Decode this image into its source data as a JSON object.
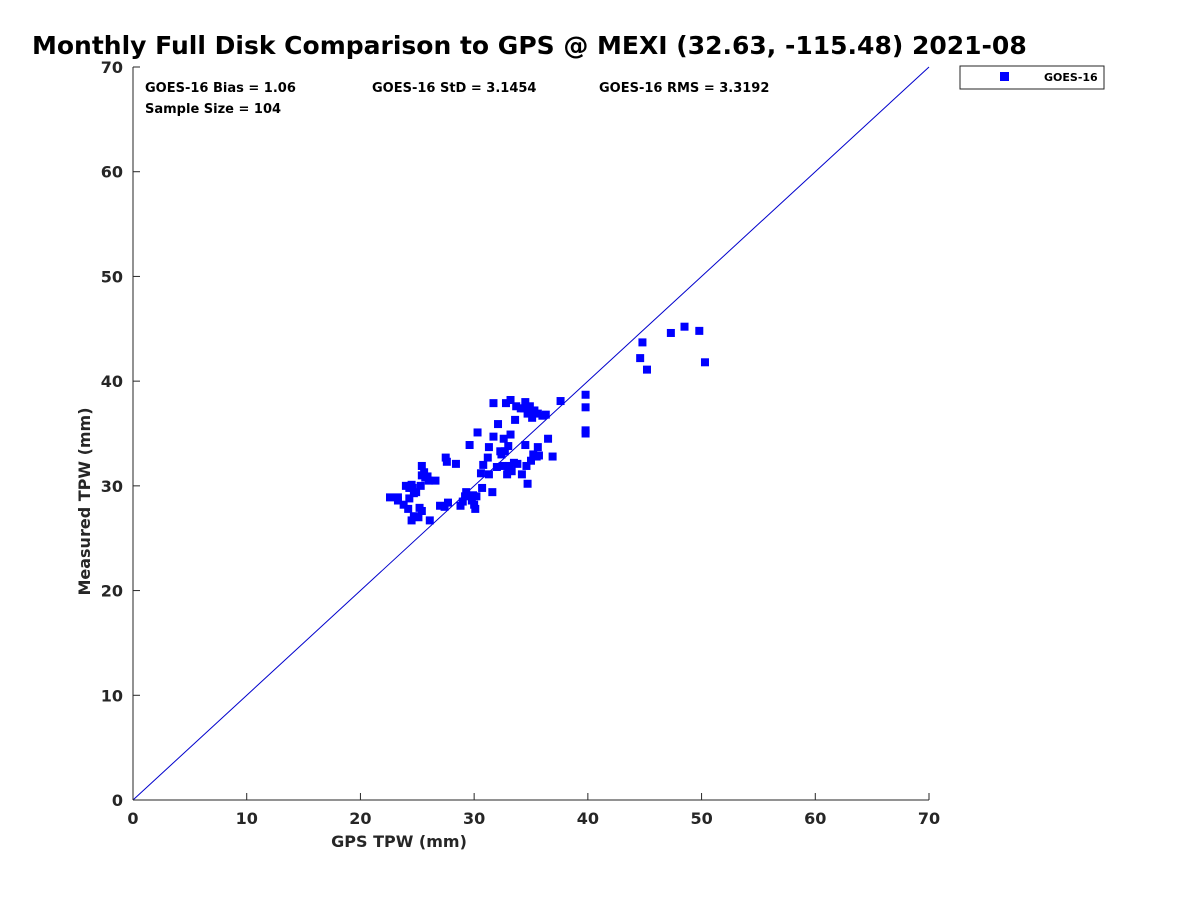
{
  "colors": {
    "series": "#0000ff",
    "axis": "#262626",
    "line": "#0000cc"
  },
  "chart_data": {
    "type": "scatter",
    "title": "Monthly Full Disk Comparison to GPS @ MEXI (32.63, -115.48) 2021-08",
    "xlabel": "GPS TPW (mm)",
    "ylabel": "Measured TPW (mm)",
    "xlim": [
      0,
      70
    ],
    "ylim": [
      0,
      70
    ],
    "xticks": [
      "0",
      "10",
      "20",
      "30",
      "40",
      "50",
      "60",
      "70"
    ],
    "yticks": [
      "0",
      "10",
      "20",
      "30",
      "40",
      "50",
      "60",
      "70"
    ],
    "grid": false,
    "legend": "outside-top-right",
    "stats": [
      "GOES-16 Bias = 1.06",
      "GOES-16 StD = 3.1454",
      "GOES-16 RMS = 3.3192",
      "Sample Size = 104"
    ],
    "reference_line": {
      "x": [
        0,
        70
      ],
      "y": [
        0,
        70
      ]
    },
    "series": [
      {
        "name": "GOES-16",
        "marker": "square",
        "points": [
          [
            22.6,
            28.9
          ],
          [
            23.3,
            28.6
          ],
          [
            23.3,
            28.9
          ],
          [
            23.8,
            28.2
          ],
          [
            24.0,
            30.0
          ],
          [
            24.2,
            27.8
          ],
          [
            24.3,
            28.8
          ],
          [
            24.3,
            29.8
          ],
          [
            24.5,
            30.1
          ],
          [
            24.5,
            26.7
          ],
          [
            24.7,
            27.1
          ],
          [
            24.7,
            29.3
          ],
          [
            24.9,
            29.4
          ],
          [
            25.1,
            27.0
          ],
          [
            25.3,
            30.0
          ],
          [
            25.4,
            31.9
          ],
          [
            25.4,
            27.6
          ],
          [
            25.4,
            31.0
          ],
          [
            25.6,
            31.3
          ],
          [
            25.7,
            30.8
          ],
          [
            25.9,
            30.9
          ],
          [
            26.0,
            30.5
          ],
          [
            26.1,
            26.7
          ],
          [
            26.6,
            30.5
          ],
          [
            27.0,
            28.1
          ],
          [
            27.4,
            28.0
          ],
          [
            27.5,
            32.7
          ],
          [
            27.6,
            32.3
          ],
          [
            27.7,
            28.4
          ],
          [
            28.4,
            32.1
          ],
          [
            28.8,
            28.1
          ],
          [
            29.0,
            28.5
          ],
          [
            29.2,
            29.0
          ],
          [
            29.3,
            29.4
          ],
          [
            29.6,
            33.9
          ],
          [
            29.8,
            28.6
          ],
          [
            29.9,
            29.1
          ],
          [
            30.0,
            28.2
          ],
          [
            30.1,
            27.8
          ],
          [
            30.2,
            29.0
          ],
          [
            30.3,
            35.1
          ],
          [
            30.6,
            31.2
          ],
          [
            30.7,
            29.8
          ],
          [
            30.8,
            32.0
          ],
          [
            31.2,
            32.7
          ],
          [
            31.3,
            31.1
          ],
          [
            31.3,
            33.7
          ],
          [
            31.6,
            29.4
          ],
          [
            31.7,
            34.7
          ],
          [
            31.7,
            37.9
          ],
          [
            32.0,
            31.8
          ],
          [
            32.1,
            35.9
          ],
          [
            32.3,
            33.3
          ],
          [
            32.5,
            31.9
          ],
          [
            32.6,
            34.5
          ],
          [
            32.7,
            33.3
          ],
          [
            32.8,
            37.9
          ],
          [
            32.9,
            31.1
          ],
          [
            33.0,
            31.8
          ],
          [
            33.0,
            33.8
          ],
          [
            33.1,
            31.9
          ],
          [
            33.2,
            38.2
          ],
          [
            33.2,
            34.9
          ],
          [
            33.3,
            31.4
          ],
          [
            33.6,
            36.3
          ],
          [
            33.7,
            37.6
          ],
          [
            33.8,
            32.1
          ],
          [
            34.1,
            37.4
          ],
          [
            34.2,
            31.1
          ],
          [
            34.4,
            37.4
          ],
          [
            34.5,
            38.0
          ],
          [
            34.5,
            33.9
          ],
          [
            34.6,
            31.9
          ],
          [
            34.7,
            30.2
          ],
          [
            34.7,
            36.9
          ],
          [
            34.9,
            37.6
          ],
          [
            35.0,
            32.4
          ],
          [
            35.1,
            36.5
          ],
          [
            35.2,
            33.0
          ],
          [
            35.3,
            37.2
          ],
          [
            35.5,
            32.8
          ],
          [
            35.6,
            36.9
          ],
          [
            35.6,
            33.7
          ],
          [
            36.0,
            36.7
          ],
          [
            36.3,
            36.8
          ],
          [
            36.5,
            34.5
          ],
          [
            36.9,
            32.8
          ],
          [
            37.6,
            38.1
          ],
          [
            39.8,
            38.7
          ],
          [
            39.8,
            37.5
          ],
          [
            39.8,
            35.3
          ],
          [
            39.8,
            35.0
          ],
          [
            44.6,
            42.2
          ],
          [
            44.8,
            43.7
          ],
          [
            45.2,
            41.1
          ],
          [
            47.3,
            44.6
          ],
          [
            48.5,
            45.2
          ],
          [
            49.8,
            44.8
          ],
          [
            50.3,
            41.8
          ],
          [
            32.4,
            33.0
          ],
          [
            35.7,
            32.9
          ],
          [
            25.2,
            27.9
          ],
          [
            24.6,
            29.8
          ],
          [
            33.5,
            32.2
          ]
        ]
      }
    ]
  }
}
